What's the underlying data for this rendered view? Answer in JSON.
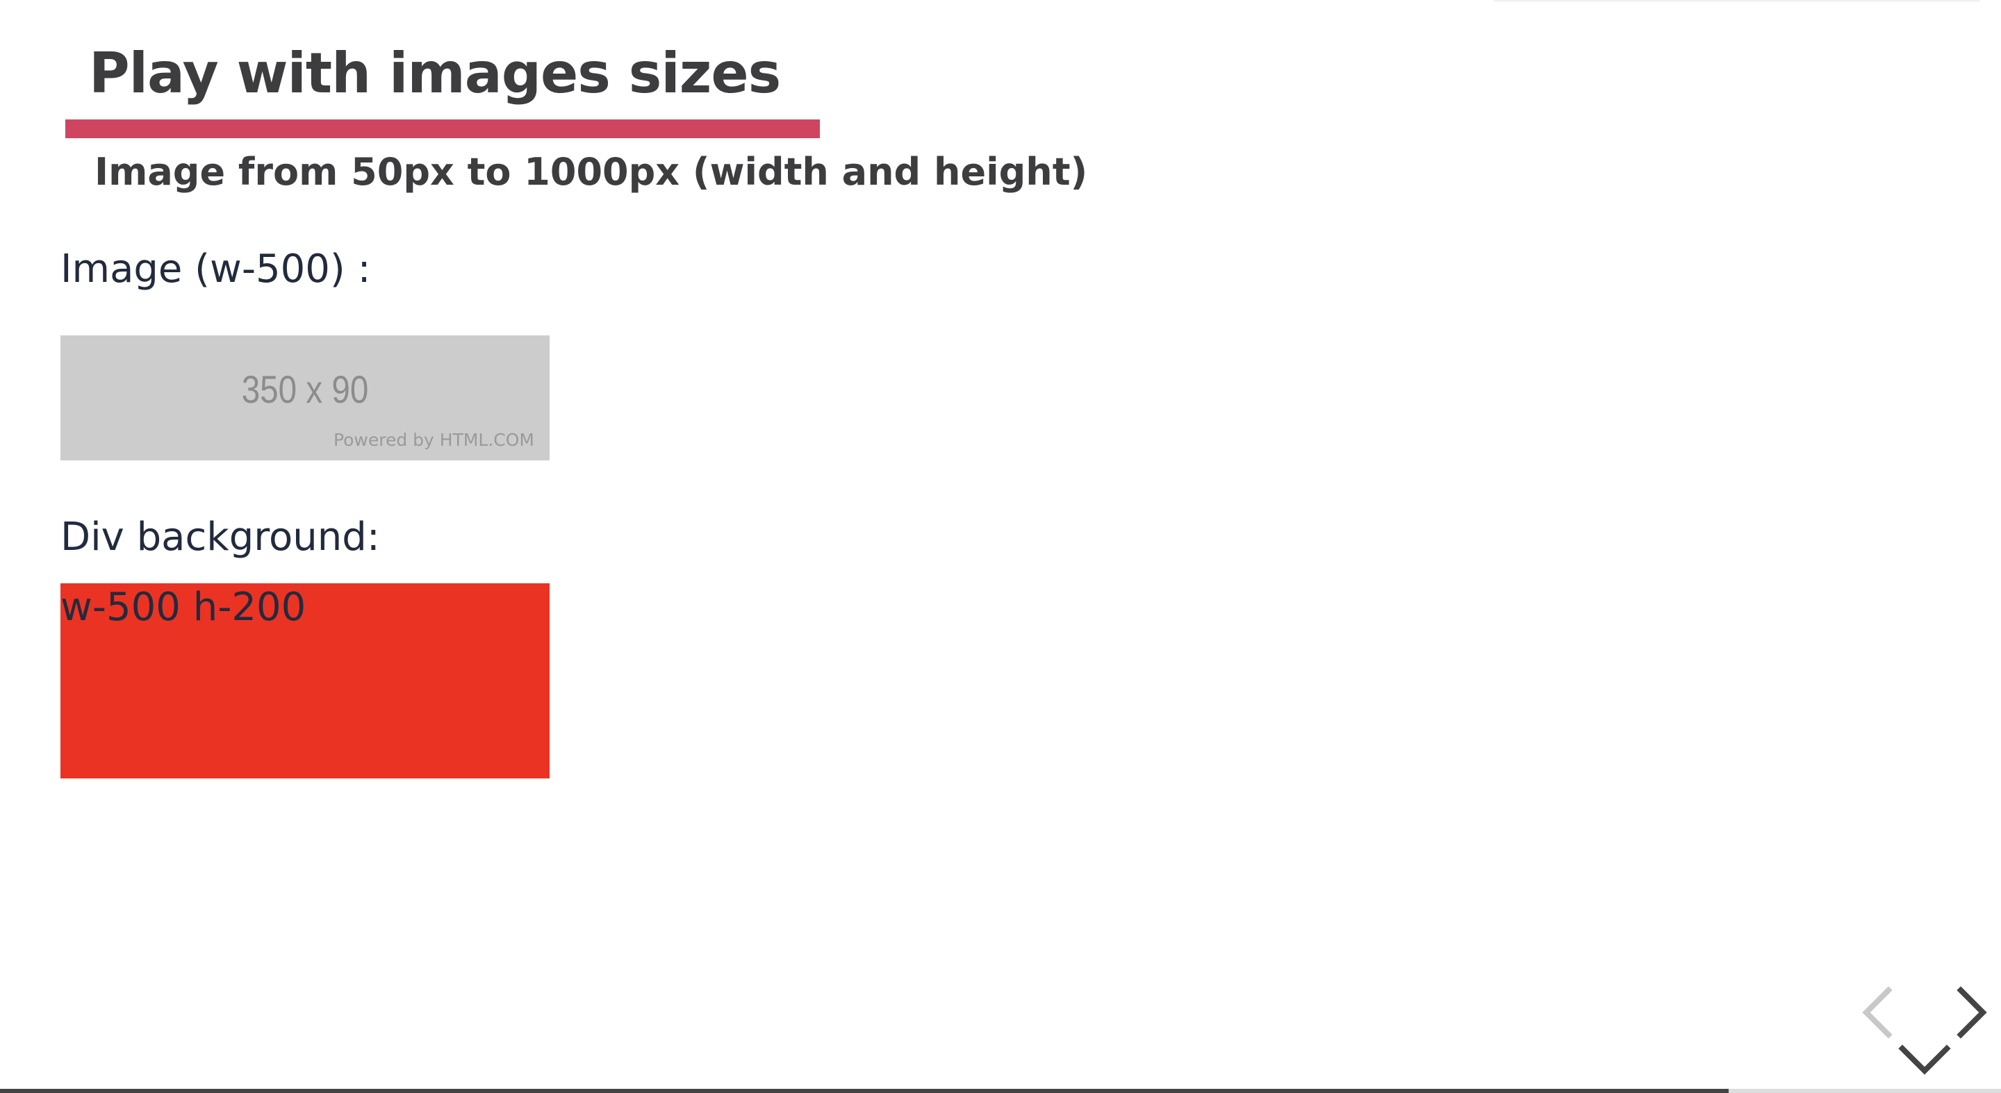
{
  "slide": {
    "title": "Play with images sizes",
    "subtitle": "Image from 50px to 1000px (width and height)",
    "image_label": "Image (w-500) :",
    "placeholder_size": "350 x 90",
    "placeholder_credit": "Powered by HTML.COM",
    "div_label": "Div background:",
    "div_box_text": "w-500 h-200"
  },
  "colors": {
    "accent_underline": "#cf4560",
    "div_box_background": "#eb3324",
    "placeholder_background": "#cccccc"
  },
  "navigation": {
    "prev_icon": "chevron-left-icon",
    "next_icon": "chevron-right-icon",
    "down_icon": "chevron-down-icon"
  },
  "progress": {
    "fraction": 0.864
  }
}
